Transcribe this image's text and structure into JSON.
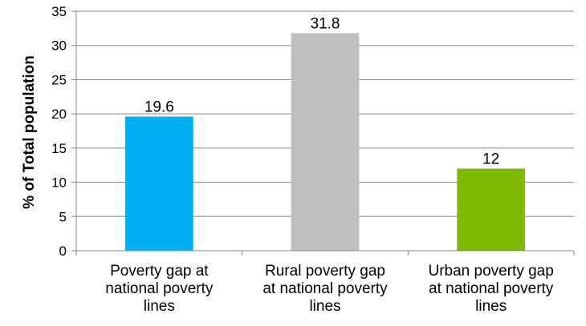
{
  "chart_data": {
    "type": "bar",
    "categories": [
      [
        "Poverty gap at",
        "national poverty",
        "lines"
      ],
      [
        "Rural poverty gap",
        "at national poverty",
        "lines"
      ],
      [
        "Urban poverty gap",
        "at national poverty",
        "lines"
      ]
    ],
    "values": [
      19.6,
      31.8,
      12
    ],
    "value_labels": [
      "19.6",
      "31.8",
      "12"
    ],
    "colors": [
      "#00b0f0",
      "#bfbfbf",
      "#7fba00"
    ],
    "title": "",
    "xlabel": "",
    "ylabel": "% of Total population",
    "ylim": [
      0,
      35
    ],
    "yticks": [
      0,
      5,
      10,
      15,
      20,
      25,
      30,
      35
    ],
    "grid": true,
    "legend": "none"
  },
  "colors": {
    "grid": "#868686",
    "axis": "#868686"
  }
}
